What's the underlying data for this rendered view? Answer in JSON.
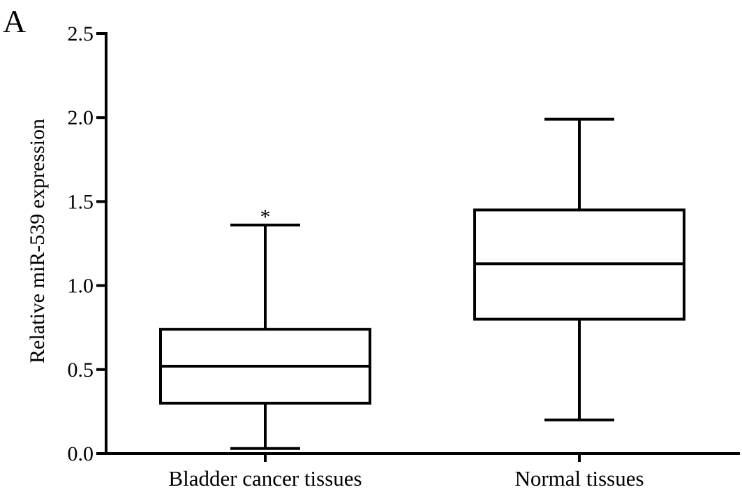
{
  "panel_label": "A",
  "chart_data": {
    "type": "box",
    "title": "",
    "xlabel": "",
    "ylabel": "Relative miR-539 expression",
    "ylim": [
      0,
      2.5
    ],
    "yticks": [
      "0.0",
      "0.5",
      "1.0",
      "1.5",
      "2.0",
      "2.5"
    ],
    "categories": [
      "Bladder cancer tissues",
      "Normal tissues"
    ],
    "boxes": [
      {
        "category": "Bladder cancer tissues",
        "min": 0.03,
        "q1": 0.3,
        "median": 0.52,
        "q3": 0.74,
        "max": 1.36,
        "annotation": "*"
      },
      {
        "category": "Normal tissues",
        "min": 0.2,
        "q1": 0.8,
        "median": 1.13,
        "q3": 1.45,
        "max": 1.99,
        "annotation": ""
      }
    ],
    "grid": false,
    "legend": "none"
  }
}
